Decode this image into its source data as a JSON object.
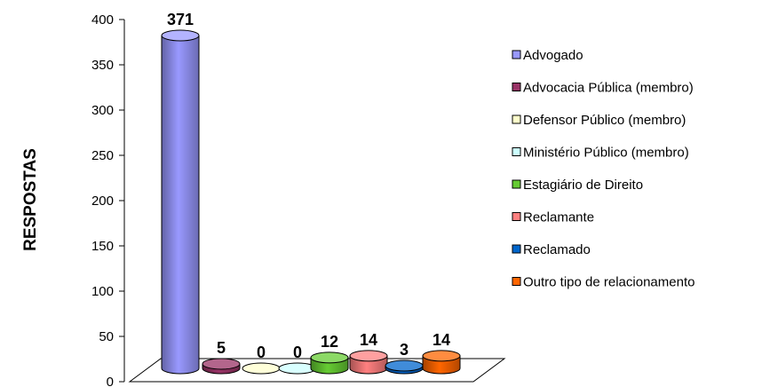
{
  "chart_data": {
    "type": "bar",
    "style": "3d-cylinder",
    "title": "",
    "xlabel": "",
    "ylabel": "RESPOSTAS",
    "ylim": [
      0,
      400
    ],
    "yticks": [
      0,
      50,
      100,
      150,
      200,
      250,
      300,
      350,
      400
    ],
    "legend_position": "right",
    "grid": false,
    "series": [
      {
        "name": "Advogado",
        "value": 371,
        "color": "#9999ff"
      },
      {
        "name": "Advocacia Pública (membro)",
        "value": 5,
        "color": "#993366"
      },
      {
        "name": "Defensor Público (membro)",
        "value": 0,
        "color": "#ffffcc"
      },
      {
        "name": "Ministério Público (membro)",
        "value": 0,
        "color": "#ccffff"
      },
      {
        "name": "Estagiário de Direito",
        "value": 12,
        "color": "#66cc33"
      },
      {
        "name": "Reclamante",
        "value": 14,
        "color": "#ff8080"
      },
      {
        "name": "Reclamado",
        "value": 3,
        "color": "#0066cc"
      },
      {
        "name": "Outro tipo de relacionamento",
        "value": 14,
        "color": "#ff6600"
      }
    ]
  }
}
